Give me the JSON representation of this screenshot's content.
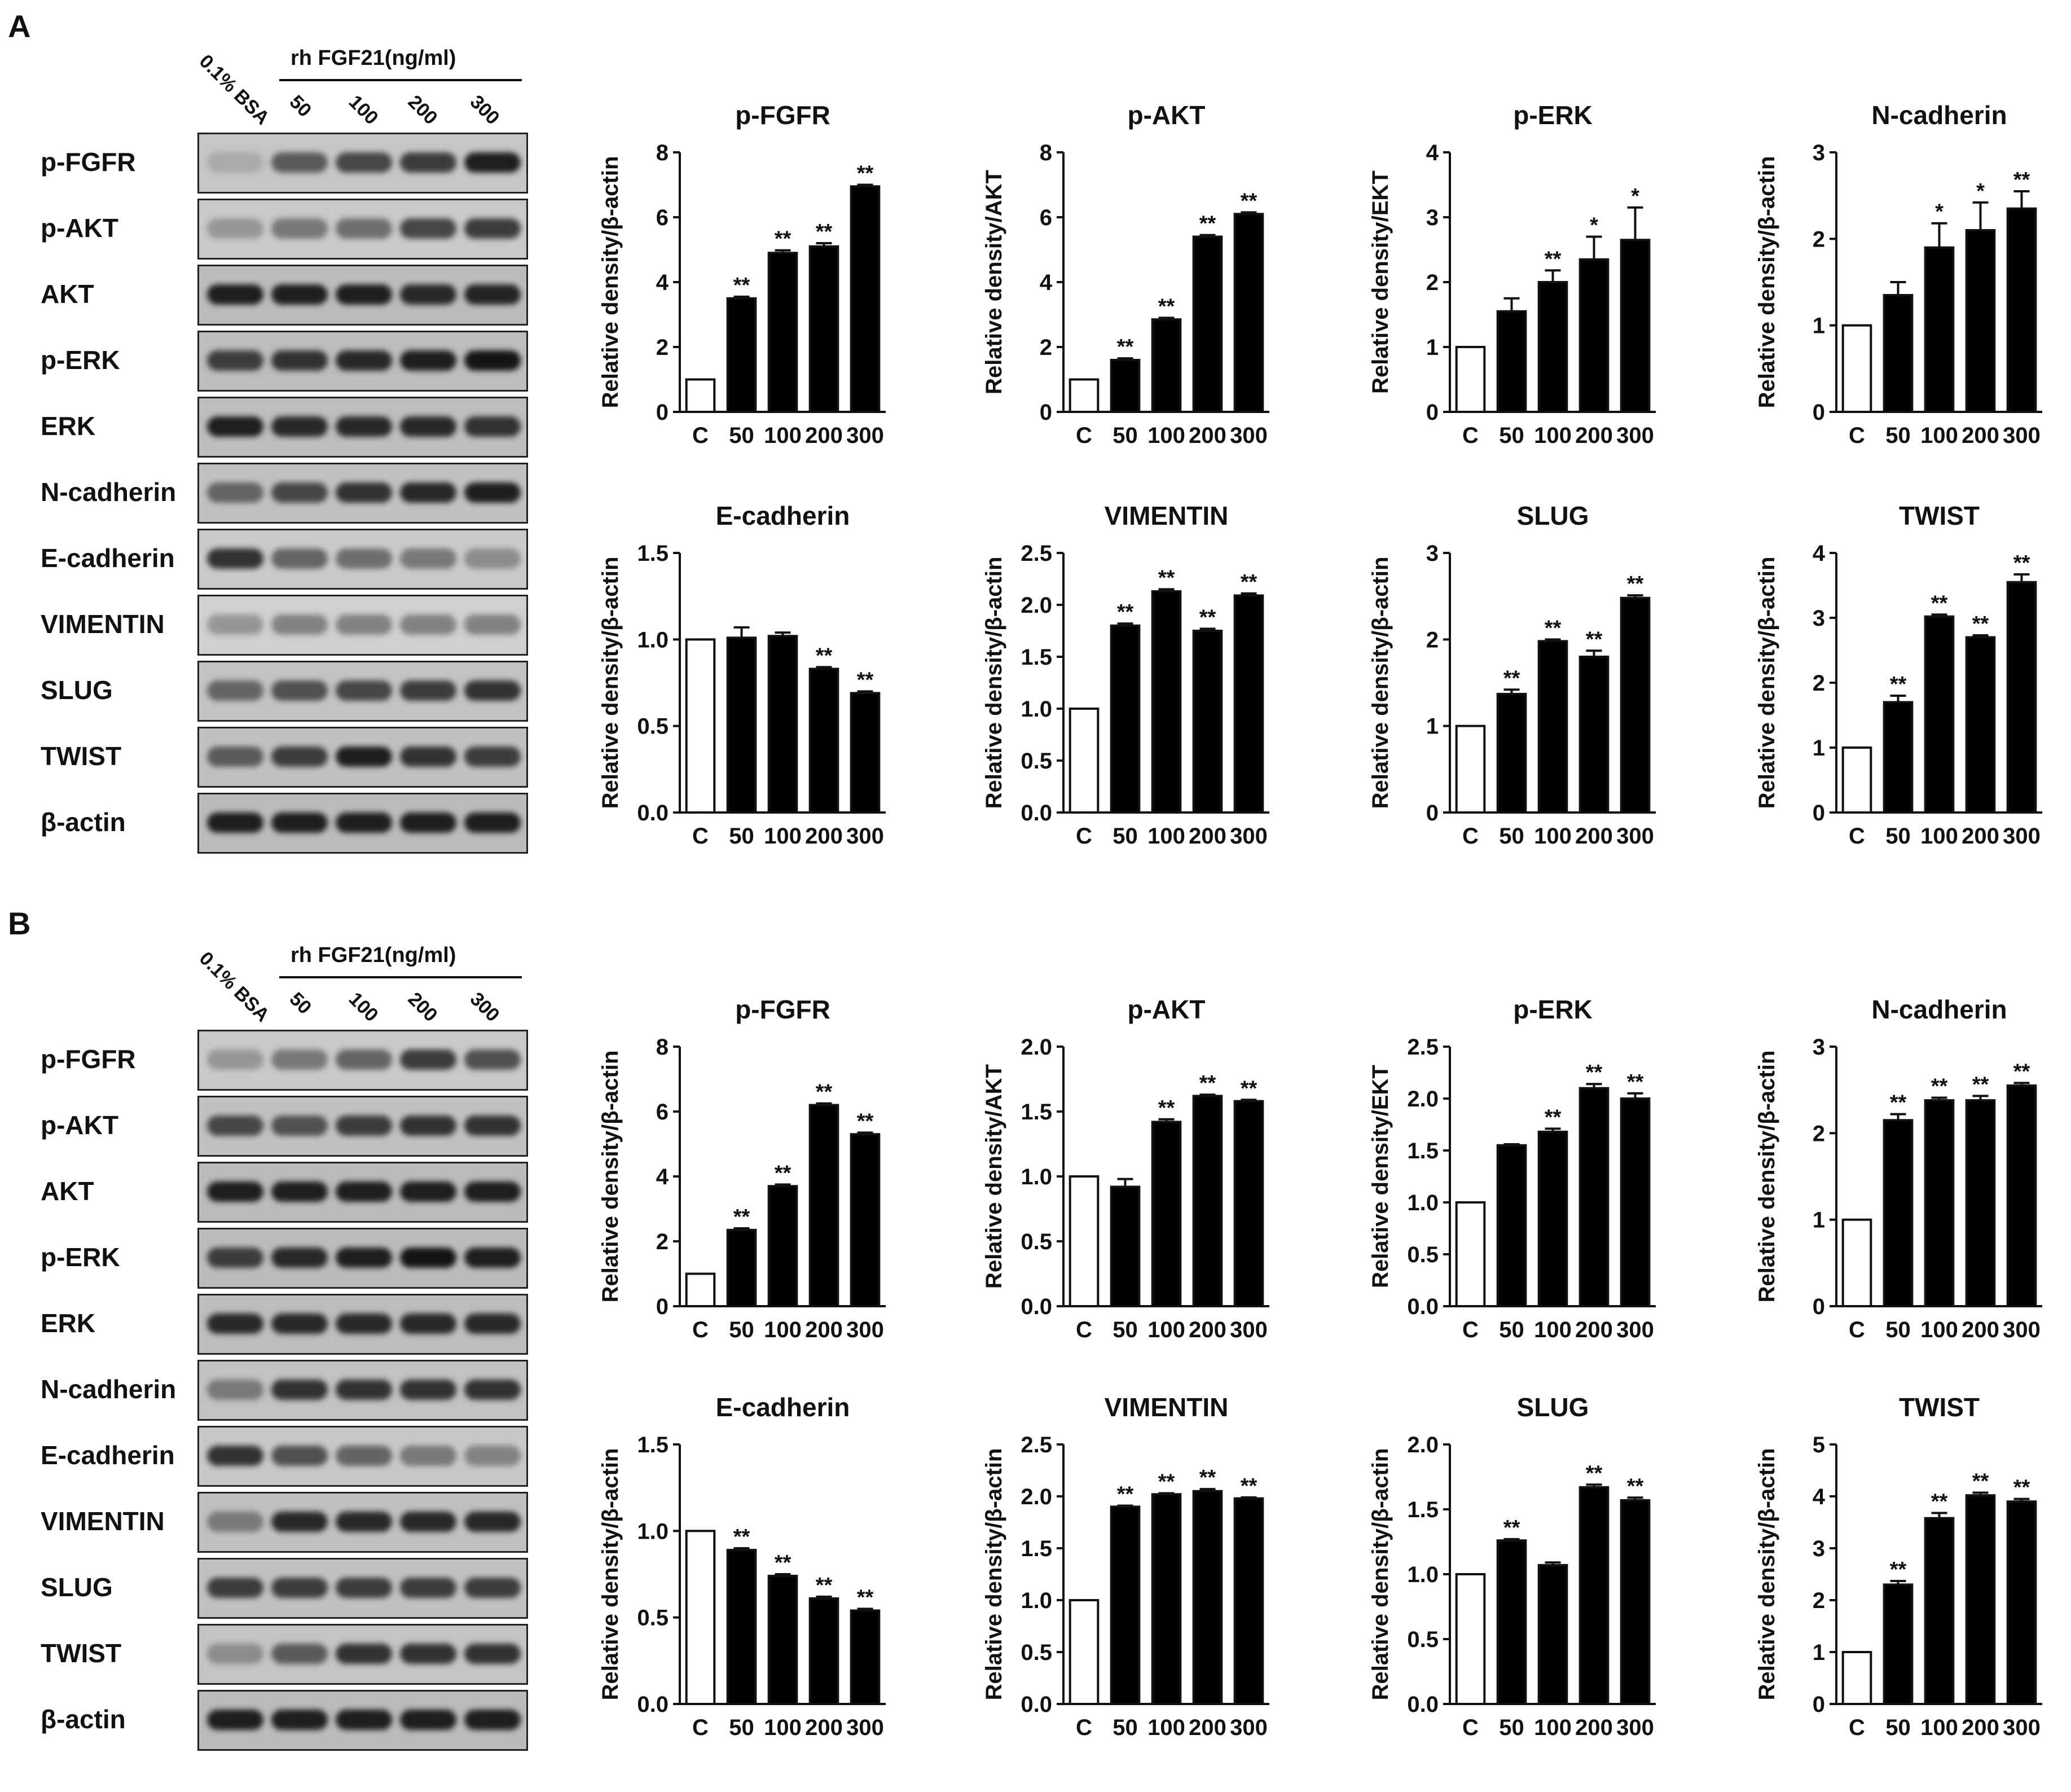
{
  "panels": [
    {
      "letter": "A",
      "blot": {
        "concentration_label": "rh FGF21(ng/ml)",
        "lanes": [
          "0.1% BSA",
          "50",
          "100",
          "200",
          "300"
        ],
        "rows": [
          {
            "label": "p-FGFR",
            "intensity": [
              0.25,
              0.65,
              0.75,
              0.8,
              0.95
            ]
          },
          {
            "label": "p-AKT",
            "intensity": [
              0.35,
              0.5,
              0.55,
              0.75,
              0.8
            ]
          },
          {
            "label": "AKT",
            "intensity": [
              0.95,
              0.95,
              0.95,
              0.9,
              0.92
            ]
          },
          {
            "label": "p-ERK",
            "intensity": [
              0.8,
              0.85,
              0.9,
              0.95,
              1.0
            ]
          },
          {
            "label": "ERK",
            "intensity": [
              0.95,
              0.9,
              0.9,
              0.9,
              0.85
            ]
          },
          {
            "label": "N-cadherin",
            "intensity": [
              0.6,
              0.75,
              0.85,
              0.9,
              0.95
            ]
          },
          {
            "label": "E-cadherin",
            "intensity": [
              0.85,
              0.6,
              0.55,
              0.5,
              0.4
            ]
          },
          {
            "label": "VIMENTIN",
            "intensity": [
              0.35,
              0.45,
              0.45,
              0.45,
              0.45
            ]
          },
          {
            "label": "SLUG",
            "intensity": [
              0.6,
              0.7,
              0.75,
              0.8,
              0.85
            ]
          },
          {
            "label": "TWIST",
            "intensity": [
              0.65,
              0.8,
              0.95,
              0.85,
              0.8
            ]
          },
          {
            "label": "β-actin",
            "intensity": [
              0.95,
              0.95,
              0.95,
              0.95,
              0.95
            ]
          }
        ]
      }
    },
    {
      "letter": "B",
      "blot": {
        "concentration_label": "rh FGF21(ng/ml)",
        "lanes": [
          "0.1% BSA",
          "50",
          "100",
          "200",
          "300"
        ],
        "rows": [
          {
            "label": "p-FGFR",
            "intensity": [
              0.35,
              0.5,
              0.6,
              0.8,
              0.7
            ]
          },
          {
            "label": "p-AKT",
            "intensity": [
              0.75,
              0.7,
              0.8,
              0.85,
              0.85
            ]
          },
          {
            "label": "AKT",
            "intensity": [
              0.95,
              0.95,
              0.95,
              0.95,
              0.95
            ]
          },
          {
            "label": "p-ERK",
            "intensity": [
              0.8,
              0.9,
              0.95,
              1.0,
              0.95
            ]
          },
          {
            "label": "ERK",
            "intensity": [
              0.9,
              0.9,
              0.9,
              0.9,
              0.9
            ]
          },
          {
            "label": "N-cadherin",
            "intensity": [
              0.5,
              0.85,
              0.85,
              0.85,
              0.85
            ]
          },
          {
            "label": "E-cadherin",
            "intensity": [
              0.85,
              0.7,
              0.6,
              0.5,
              0.45
            ]
          },
          {
            "label": "VIMENTIN",
            "intensity": [
              0.5,
              0.9,
              0.9,
              0.9,
              0.9
            ]
          },
          {
            "label": "SLUG",
            "intensity": [
              0.8,
              0.8,
              0.8,
              0.8,
              0.8
            ]
          },
          {
            "label": "TWIST",
            "intensity": [
              0.4,
              0.65,
              0.85,
              0.85,
              0.85
            ]
          },
          {
            "label": "β-actin",
            "intensity": [
              0.95,
              0.95,
              0.95,
              0.95,
              0.95
            ]
          }
        ]
      }
    }
  ],
  "chart_data": [
    {
      "type": "bar",
      "panel": "A",
      "title": "p-FGFR",
      "ylabel": "Relative density/β-actin",
      "categories": [
        "C",
        "50",
        "100",
        "200",
        "300"
      ],
      "values": [
        1.0,
        3.5,
        4.9,
        5.1,
        6.95
      ],
      "errors": [
        0,
        0.05,
        0.08,
        0.1,
        0.05
      ],
      "sig": [
        "",
        "**",
        "**",
        "**",
        "**"
      ],
      "ylim": [
        0,
        8
      ],
      "yticks": [
        "0",
        "2",
        "4",
        "6",
        "8"
      ]
    },
    {
      "type": "bar",
      "panel": "A",
      "title": "p-AKT",
      "ylabel": "Relative density/AKT",
      "categories": [
        "C",
        "50",
        "100",
        "200",
        "300"
      ],
      "values": [
        1.0,
        1.6,
        2.85,
        5.4,
        6.1
      ],
      "errors": [
        0,
        0.05,
        0.05,
        0.05,
        0.05
      ],
      "sig": [
        "",
        "**",
        "**",
        "**",
        "**"
      ],
      "ylim": [
        0,
        8
      ],
      "yticks": [
        "0",
        "2",
        "4",
        "6",
        "8"
      ]
    },
    {
      "type": "bar",
      "panel": "A",
      "title": "p-ERK",
      "ylabel": "Relative density/EKT",
      "categories": [
        "C",
        "50",
        "100",
        "200",
        "300"
      ],
      "values": [
        1.0,
        1.55,
        2.0,
        2.35,
        2.65
      ],
      "errors": [
        0,
        0.2,
        0.18,
        0.35,
        0.5
      ],
      "sig": [
        "",
        "",
        "**",
        "*",
        "*"
      ],
      "ylim": [
        0,
        4
      ],
      "yticks": [
        "0",
        "1",
        "2",
        "3",
        "4"
      ]
    },
    {
      "type": "bar",
      "panel": "A",
      "title": "N-cadherin",
      "ylabel": "Relative density/β-actin",
      "categories": [
        "C",
        "50",
        "100",
        "200",
        "300"
      ],
      "values": [
        1.0,
        1.35,
        1.9,
        2.1,
        2.35
      ],
      "errors": [
        0,
        0.15,
        0.28,
        0.32,
        0.2
      ],
      "sig": [
        "",
        "",
        "*",
        "*",
        "**"
      ],
      "ylim": [
        0,
        3
      ],
      "yticks": [
        "0",
        "1",
        "2",
        "3"
      ]
    },
    {
      "type": "bar",
      "panel": "A",
      "title": "E-cadherin",
      "ylabel": "Relative density/β-actin",
      "categories": [
        "C",
        "50",
        "100",
        "200",
        "300"
      ],
      "values": [
        1.0,
        1.01,
        1.02,
        0.83,
        0.69
      ],
      "errors": [
        0,
        0.06,
        0.02,
        0.01,
        0.01
      ],
      "sig": [
        "",
        "",
        "",
        "**",
        "**"
      ],
      "ylim": [
        0,
        1.5
      ],
      "yticks": [
        "0.0",
        "0.5",
        "1.0",
        "1.5"
      ]
    },
    {
      "type": "bar",
      "panel": "A",
      "title": "VIMENTIN",
      "ylabel": "Relative density/β-actin",
      "categories": [
        "C",
        "50",
        "100",
        "200",
        "300"
      ],
      "values": [
        1.0,
        1.8,
        2.13,
        1.75,
        2.09
      ],
      "errors": [
        0,
        0.02,
        0.02,
        0.02,
        0.02
      ],
      "sig": [
        "",
        "**",
        "**",
        "**",
        "**"
      ],
      "ylim": [
        0,
        2.5
      ],
      "yticks": [
        "0.0",
        "0.5",
        "1.0",
        "1.5",
        "2.0",
        "2.5"
      ]
    },
    {
      "type": "bar",
      "panel": "A",
      "title": "SLUG",
      "ylabel": "Relative density/β-actin",
      "categories": [
        "C",
        "50",
        "100",
        "200",
        "300"
      ],
      "values": [
        1.0,
        1.37,
        1.98,
        1.8,
        2.48
      ],
      "errors": [
        0,
        0.05,
        0.02,
        0.07,
        0.03
      ],
      "sig": [
        "",
        "**",
        "**",
        "**",
        "**"
      ],
      "ylim": [
        0,
        3
      ],
      "yticks": [
        "0",
        "1",
        "2",
        "3"
      ]
    },
    {
      "type": "bar",
      "panel": "A",
      "title": "TWIST",
      "ylabel": "Relative density/β-actin",
      "categories": [
        "C",
        "50",
        "100",
        "200",
        "300"
      ],
      "values": [
        1.0,
        1.7,
        3.02,
        2.7,
        3.55
      ],
      "errors": [
        0,
        0.1,
        0.03,
        0.03,
        0.12
      ],
      "sig": [
        "",
        "**",
        "**",
        "**",
        "**"
      ],
      "ylim": [
        0,
        4
      ],
      "yticks": [
        "0",
        "1",
        "2",
        "3",
        "4"
      ]
    },
    {
      "type": "bar",
      "panel": "B",
      "title": "p-FGFR",
      "ylabel": "Relative density/β-actin",
      "categories": [
        "C",
        "50",
        "100",
        "200",
        "300"
      ],
      "values": [
        1.0,
        2.35,
        3.7,
        6.2,
        5.3
      ],
      "errors": [
        0,
        0.05,
        0.05,
        0.05,
        0.05
      ],
      "sig": [
        "",
        "**",
        "**",
        "**",
        "**"
      ],
      "ylim": [
        0,
        8
      ],
      "yticks": [
        "0",
        "2",
        "4",
        "6",
        "8"
      ]
    },
    {
      "type": "bar",
      "panel": "B",
      "title": "p-AKT",
      "ylabel": "Relative density/AKT",
      "categories": [
        "C",
        "50",
        "100",
        "200",
        "300"
      ],
      "values": [
        1.0,
        0.92,
        1.42,
        1.62,
        1.58
      ],
      "errors": [
        0,
        0.06,
        0.02,
        0.01,
        0.01
      ],
      "sig": [
        "",
        "",
        "**",
        "**",
        "**"
      ],
      "ylim": [
        0,
        2.0
      ],
      "yticks": [
        "0.0",
        "0.5",
        "1.0",
        "1.5",
        "2.0"
      ]
    },
    {
      "type": "bar",
      "panel": "B",
      "title": "p-ERK",
      "ylabel": "Relative density/EKT",
      "categories": [
        "C",
        "50",
        "100",
        "200",
        "300"
      ],
      "values": [
        1.0,
        1.55,
        1.68,
        2.1,
        2.0
      ],
      "errors": [
        0,
        0.01,
        0.03,
        0.04,
        0.05
      ],
      "sig": [
        "",
        "",
        "**",
        "**",
        "**"
      ],
      "ylim": [
        0,
        2.5
      ],
      "yticks": [
        "0.0",
        "0.5",
        "1.0",
        "1.5",
        "2.0",
        "2.5"
      ]
    },
    {
      "type": "bar",
      "panel": "B",
      "title": "N-cadherin",
      "ylabel": "Relative density/β-actin",
      "categories": [
        "C",
        "50",
        "100",
        "200",
        "300"
      ],
      "values": [
        1.0,
        2.15,
        2.38,
        2.38,
        2.55
      ],
      "errors": [
        0,
        0.07,
        0.03,
        0.05,
        0.03
      ],
      "sig": [
        "",
        "**",
        "**",
        "**",
        "**"
      ],
      "ylim": [
        0,
        3
      ],
      "yticks": [
        "0",
        "1",
        "2",
        "3"
      ]
    },
    {
      "type": "bar",
      "panel": "B",
      "title": "E-cadherin",
      "ylabel": "Relative density/β-actin",
      "categories": [
        "C",
        "50",
        "100",
        "200",
        "300"
      ],
      "values": [
        1.0,
        0.89,
        0.74,
        0.61,
        0.54
      ],
      "errors": [
        0,
        0.01,
        0.01,
        0.01,
        0.01
      ],
      "sig": [
        "",
        "**",
        "**",
        "**",
        "**"
      ],
      "ylim": [
        0,
        1.5
      ],
      "yticks": [
        "0.0",
        "0.5",
        "1.0",
        "1.5"
      ]
    },
    {
      "type": "bar",
      "panel": "B",
      "title": "VIMENTIN",
      "ylabel": "Relative density/β-actin",
      "categories": [
        "C",
        "50",
        "100",
        "200",
        "300"
      ],
      "values": [
        1.0,
        1.9,
        2.02,
        2.05,
        1.98
      ],
      "errors": [
        0,
        0.01,
        0.01,
        0.02,
        0.01
      ],
      "sig": [
        "",
        "**",
        "**",
        "**",
        "**"
      ],
      "ylim": [
        0,
        2.5
      ],
      "yticks": [
        "0.0",
        "0.5",
        "1.0",
        "1.5",
        "2.0",
        "2.5"
      ]
    },
    {
      "type": "bar",
      "panel": "B",
      "title": "SLUG",
      "ylabel": "Relative density/β-actin",
      "categories": [
        "C",
        "50",
        "100",
        "200",
        "300"
      ],
      "values": [
        1.0,
        1.26,
        1.07,
        1.67,
        1.57
      ],
      "errors": [
        0,
        0.01,
        0.02,
        0.02,
        0.02
      ],
      "sig": [
        "",
        "**",
        "",
        "**",
        "**"
      ],
      "ylim": [
        0,
        2.0
      ],
      "yticks": [
        "0.0",
        "0.5",
        "1.0",
        "1.5",
        "2.0"
      ]
    },
    {
      "type": "bar",
      "panel": "B",
      "title": "TWIST",
      "ylabel": "Relative density/β-actin",
      "categories": [
        "C",
        "50",
        "100",
        "200",
        "300"
      ],
      "values": [
        1.0,
        2.3,
        3.58,
        4.02,
        3.9
      ],
      "errors": [
        0,
        0.07,
        0.1,
        0.05,
        0.05
      ],
      "sig": [
        "",
        "**",
        "**",
        "**",
        "**"
      ],
      "ylim": [
        0,
        5
      ],
      "yticks": [
        "0",
        "1",
        "2",
        "3",
        "4",
        "5"
      ]
    }
  ]
}
